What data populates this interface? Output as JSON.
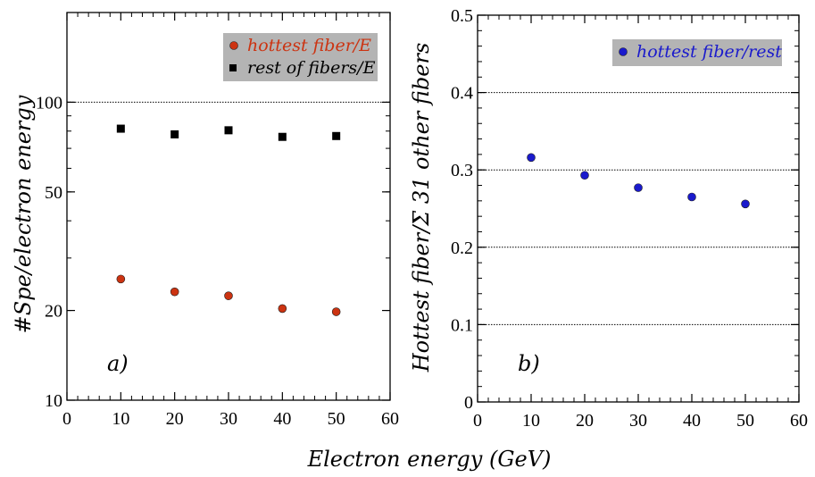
{
  "xlabel": "Electron energy (GeV)",
  "chart_data": [
    {
      "type": "scatter",
      "panel_label": "a)",
      "ylabel": "#Spe/electron energy",
      "yscale": "log",
      "xlim": [
        0,
        60
      ],
      "ylim": [
        10,
        200
      ],
      "x_ticks": [
        "0",
        "10",
        "20",
        "30",
        "40",
        "50",
        "60"
      ],
      "y_ticks": [
        {
          "value": 10,
          "label": "10"
        },
        {
          "value": 20,
          "label": "20"
        },
        {
          "value": 50,
          "label": "50"
        },
        {
          "value": 100,
          "label": "100"
        }
      ],
      "reference_lines": [
        100
      ],
      "legend_placement": "top-right",
      "series": [
        {
          "name": "hottest fiber/E",
          "color": "#cc3311",
          "marker": "circle",
          "x": [
            10,
            20,
            30,
            40,
            50
          ],
          "y": [
            25.5,
            23.1,
            22.4,
            20.3,
            19.8
          ]
        },
        {
          "name": "rest of fibers/E",
          "color": "#000000",
          "marker": "square",
          "x": [
            10,
            20,
            30,
            40,
            50
          ],
          "y": [
            81.5,
            78.0,
            80.5,
            76.5,
            77.0
          ]
        }
      ]
    },
    {
      "type": "scatter",
      "panel_label": "b)",
      "ylabel": "Hottest fiber/Σ 31 other fibers",
      "yscale": "linear",
      "xlim": [
        0,
        60
      ],
      "ylim": [
        0,
        0.5
      ],
      "x_ticks": [
        "0",
        "10",
        "20",
        "30",
        "40",
        "50",
        "60"
      ],
      "y_ticks": [
        {
          "value": 0,
          "label": "0"
        },
        {
          "value": 0.1,
          "label": "0.1"
        },
        {
          "value": 0.2,
          "label": "0.2"
        },
        {
          "value": 0.3,
          "label": "0.3"
        },
        {
          "value": 0.4,
          "label": "0.4"
        },
        {
          "value": 0.5,
          "label": "0.5"
        }
      ],
      "reference_lines": [
        0.1,
        0.2,
        0.3,
        0.4
      ],
      "legend_placement": "top-right",
      "series": [
        {
          "name": "hottest fiber/rest",
          "color": "#1a1acc",
          "marker": "circle",
          "x": [
            10,
            20,
            30,
            40,
            50
          ],
          "y": [
            0.316,
            0.293,
            0.277,
            0.265,
            0.256
          ]
        }
      ]
    }
  ],
  "style": {
    "legend_bg": "#b4b4b4",
    "axis_color": "#000000"
  }
}
